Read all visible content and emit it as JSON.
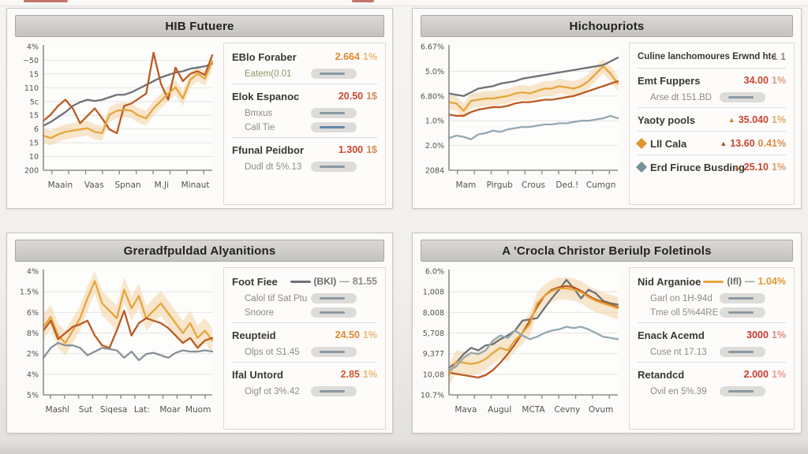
{
  "panels": [
    {
      "title": "HIB Futuere",
      "stats": [
        {
          "label": "EBlo Foraber",
          "value": "2.664",
          "value_color": "#df8a2d",
          "value2": "1%",
          "value2_color": "#e8b871",
          "subs": [
            {
              "label": "Eatem(0.01",
              "label_color": "#879868",
              "slider_color": "#8a9aa4"
            }
          ]
        },
        {
          "label": "Elok Espanoc",
          "value": "20.50",
          "value_color": "#c9452e",
          "value2": "1$",
          "value2_color": "#d98a55",
          "subs": [
            {
              "label": "Bmxus",
              "slider_color": "#8a98a2"
            },
            {
              "label": "Call Tie",
              "slider_color": "#5f86a8"
            }
          ]
        },
        {
          "label": "Ffunal Peidbor",
          "value": "1.300",
          "value_color": "#c9452e",
          "value2": "1$",
          "value2_color": "#d98a55",
          "subs": [
            {
              "label": "Dudl dt 5%.13",
              "slider_color": "#8a98a2"
            }
          ]
        }
      ]
    },
    {
      "title": "Hichoupriots",
      "stats": [
        {
          "label": "Culine lanchomoures Erwnd hte",
          "value": "1 1",
          "value_color": "#908d89"
        },
        {
          "label": "Emt Fuppers",
          "value": "34.00",
          "value_color": "#c9452e",
          "value2": "1%",
          "value2_color": "#dd9a80",
          "subs": [
            {
              "label": "Arse dt 151.BD",
              "slider_color": "#8a98a2"
            }
          ]
        },
        {
          "label": "Yaoty pools",
          "triangle": "#d97b28",
          "value": "35.040",
          "value_color": "#c9452e",
          "value2": "1%",
          "value2_color": "#e2aa60"
        },
        {
          "label": "Lll Cala",
          "icon": "diamond",
          "icon_color": "#e0962f",
          "triangle": "#b5452c",
          "value": "13.60",
          "value_color": "#c9452e",
          "value2": "0.41%",
          "value2_color": "#d98a45"
        },
        {
          "label": "Erd Firuce Busding",
          "icon": "diamond",
          "icon_color": "#74949a",
          "triangle": "#cf6a2a",
          "value": "25.10",
          "value_color": "#c9452e",
          "value2": "1%",
          "value2_color": "#dd9a60"
        }
      ]
    },
    {
      "title": "Greradfpuldad Alyanitions",
      "stats": [
        {
          "label": "Foot Fiee",
          "legend": {
            "swatch_color": "#6e7276",
            "text": "(BKl)",
            "dash": "—",
            "value": "81.55",
            "value_color": "#8d8a86"
          },
          "subs": [
            {
              "label": "Calol tif Sat Ptu",
              "slider_color": "#8a98a2"
            },
            {
              "label": "Snoore",
              "slider_color": "#8a98a2"
            }
          ]
        },
        {
          "label": "Reupteid",
          "value": "24.50",
          "value_color": "#e0872e",
          "value2": "1%",
          "value2_color": "#e8b871",
          "subs": [
            {
              "label": "Olps ot S1.45",
              "slider_color": "#8a98a2"
            }
          ]
        },
        {
          "label": "Ifal Untord",
          "value": "2.85",
          "value_color": "#cf5a2e",
          "value2": "1%",
          "value2_color": "#e8b871",
          "subs": [
            {
              "label": "Oigf ot 3%.42",
              "slider_color": "#8a98a2"
            }
          ]
        }
      ]
    },
    {
      "title": "A 'Crocla Christor Beriulp Foletinols",
      "stats": [
        {
          "label": "Nid Arganioe",
          "legend": {
            "swatch_color": "#e4a63c",
            "text": "(Ifl)",
            "dash": "—",
            "value": "1.04%",
            "value_color": "#e0962f"
          },
          "subs": [
            {
              "label": "Garl on 1H-94d",
              "slider_color": "#8a98a2"
            },
            {
              "label": "Tme oll 5%44RE",
              "slider_color": "#8a98a2"
            }
          ]
        },
        {
          "label": "Enack Acemd",
          "value": "3000",
          "value_color": "#c9392e",
          "value2": "1%",
          "value2_color": "#dd8a80",
          "subs": [
            {
              "label": "Cuse nt 17.13",
              "slider_color": "#8a98a2"
            }
          ]
        },
        {
          "label": "Retandcd",
          "value": "2.000",
          "value_color": "#c9392e",
          "value2": "1%",
          "value2_color": "#e89a90",
          "subs": [
            {
              "label": "Ovil en 5%.39",
              "slider_color": "#8a98a2"
            }
          ]
        }
      ]
    }
  ],
  "chart_data": [
    {
      "type": "line",
      "title": "HIB Futuere",
      "x_labels": [
        "Maain",
        "Vaas",
        "Spnan",
        "M.Ji",
        "Minaut"
      ],
      "y_tick_labels": [
        "4%",
        "~50",
        "15",
        "110",
        "5c",
        "15",
        "6",
        "15",
        "10",
        "200"
      ],
      "ylim": [
        0,
        100
      ],
      "grid": true,
      "legend_position": "none",
      "band": {
        "around": "gold",
        "delta": 6,
        "color": "#f3cf9b"
      },
      "series": [
        {
          "name": "gray",
          "color": "#6e7276",
          "values": [
            36,
            39,
            43,
            47,
            52,
            55,
            57,
            56,
            57,
            59,
            61,
            61,
            63,
            66,
            69,
            72,
            75,
            77,
            79,
            80,
            82,
            83,
            84,
            86
          ]
        },
        {
          "name": "red",
          "color": "#bd5a22",
          "values": [
            40,
            45,
            52,
            57,
            50,
            38,
            44,
            50,
            42,
            33,
            30,
            52,
            54,
            58,
            62,
            95,
            70,
            57,
            83,
            72,
            78,
            80,
            77,
            93
          ]
        },
        {
          "name": "gold",
          "color": "#e4a63c",
          "values": [
            28,
            26,
            29,
            31,
            32,
            33,
            34,
            31,
            30,
            45,
            48,
            49,
            48,
            44,
            42,
            50,
            56,
            62,
            67,
            58,
            73,
            78,
            74,
            88
          ]
        }
      ]
    },
    {
      "type": "line",
      "title": "Hichoupriots",
      "x_labels": [
        "Mam",
        "Pirgub",
        "Crous",
        "Ded.!",
        "Cumgn"
      ],
      "y_tick_labels": [
        "6.67%",
        "5.0%",
        "6.80%",
        "1.0%",
        "2.0%",
        "2084"
      ],
      "ylim": [
        0,
        100
      ],
      "grid": true,
      "legend_position": "none",
      "band": {
        "around": "gold",
        "delta": 6,
        "color": "#f3cf9b"
      },
      "series": [
        {
          "name": "gray",
          "color": "#6e7276",
          "values": [
            62,
            61,
            60,
            63,
            66,
            67,
            68,
            70,
            71,
            72,
            74,
            75,
            76,
            77,
            78,
            79,
            80,
            81,
            82,
            83,
            84,
            85,
            88,
            91
          ]
        },
        {
          "name": "gold",
          "color": "#e4a63c",
          "values": [
            55,
            54,
            48,
            56,
            57,
            58,
            58,
            59,
            60,
            62,
            63,
            62,
            64,
            66,
            66,
            68,
            67,
            66,
            68,
            72,
            78,
            84,
            78,
            70
          ]
        },
        {
          "name": "red",
          "color": "#bd5a22",
          "values": [
            45,
            44,
            44,
            47,
            49,
            50,
            51,
            51,
            52,
            54,
            55,
            55,
            56,
            57,
            57,
            58,
            59,
            60,
            62,
            64,
            66,
            68,
            70,
            72
          ]
        },
        {
          "name": "bluegray",
          "color": "#94a8b1",
          "values": [
            26,
            28,
            27,
            25,
            29,
            30,
            32,
            31,
            33,
            34,
            35,
            35,
            36,
            37,
            37,
            38,
            38,
            39,
            40,
            40,
            41,
            42,
            44,
            42
          ]
        }
      ]
    },
    {
      "type": "line",
      "title": "Greradfpuldad Alyanitions",
      "x_labels": [
        "Mashl",
        "Sut",
        "Siqesa",
        "Lat:",
        "Moar",
        "Muom"
      ],
      "y_tick_labels": [
        "4%",
        "1.5%",
        "6%",
        "8%",
        "2%",
        "4%",
        "5%"
      ],
      "ylim": [
        0,
        100
      ],
      "grid": true,
      "legend_position": "none",
      "band": {
        "around": "gold",
        "delta": 10,
        "color": "#f3cf9b"
      },
      "series": [
        {
          "name": "gold",
          "color": "#e4a63c",
          "values": [
            55,
            63,
            48,
            42,
            52,
            62,
            78,
            92,
            74,
            68,
            62,
            85,
            70,
            80,
            62,
            68,
            74,
            66,
            58,
            50,
            58,
            46,
            52,
            44
          ]
        },
        {
          "name": "red",
          "color": "#bd5a22",
          "values": [
            52,
            60,
            45,
            50,
            55,
            57,
            60,
            48,
            40,
            38,
            52,
            68,
            48,
            58,
            62,
            60,
            58,
            54,
            48,
            42,
            46,
            38,
            44,
            46
          ]
        },
        {
          "name": "gray",
          "color": "#8a9199",
          "values": [
            30,
            38,
            42,
            40,
            40,
            38,
            32,
            35,
            38,
            37,
            36,
            30,
            35,
            28,
            33,
            34,
            32,
            30,
            34,
            36,
            35,
            35,
            36,
            35
          ]
        }
      ]
    },
    {
      "type": "line",
      "title": "A 'Crocla Christor Beriulp Foletinols",
      "x_labels": [
        "Mava",
        "Augul",
        "MCTA",
        "Cevny",
        "Ovum"
      ],
      "y_tick_labels": [
        "6.0%",
        "1,008",
        "8,008",
        "5,708",
        "9,377",
        "10,08",
        "10.7%"
      ],
      "ylim": [
        0,
        100
      ],
      "grid": true,
      "legend_position": "none",
      "band": {
        "around": "gold",
        "delta": 9,
        "color": "#f3cf9b"
      },
      "series": [
        {
          "name": "gray",
          "color": "#6e7276",
          "values": [
            22,
            26,
            33,
            38,
            36,
            40,
            41,
            45,
            48,
            52,
            60,
            61,
            62,
            70,
            78,
            85,
            93,
            86,
            78,
            85,
            82,
            76,
            74,
            73
          ]
        },
        {
          "name": "red",
          "color": "#bd5a22",
          "values": [
            18,
            17,
            16,
            15,
            14,
            16,
            20,
            26,
            33,
            41,
            50,
            60,
            71,
            80,
            85,
            87,
            88,
            87,
            84,
            80,
            77,
            75,
            73,
            71
          ]
        },
        {
          "name": "gold",
          "color": "#e4a63c",
          "values": [
            16,
            27,
            26,
            25,
            26,
            29,
            34,
            38,
            36,
            44,
            50,
            57,
            74,
            80,
            84,
            86,
            86,
            85,
            83,
            79,
            76,
            74,
            72,
            70
          ]
        },
        {
          "name": "bluegray",
          "color": "#94a8b1",
          "values": [
            20,
            23,
            30,
            34,
            33,
            36,
            44,
            48,
            46,
            52,
            48,
            45,
            47,
            50,
            52,
            53,
            55,
            54,
            55,
            53,
            50,
            47,
            46,
            45
          ]
        }
      ]
    }
  ]
}
